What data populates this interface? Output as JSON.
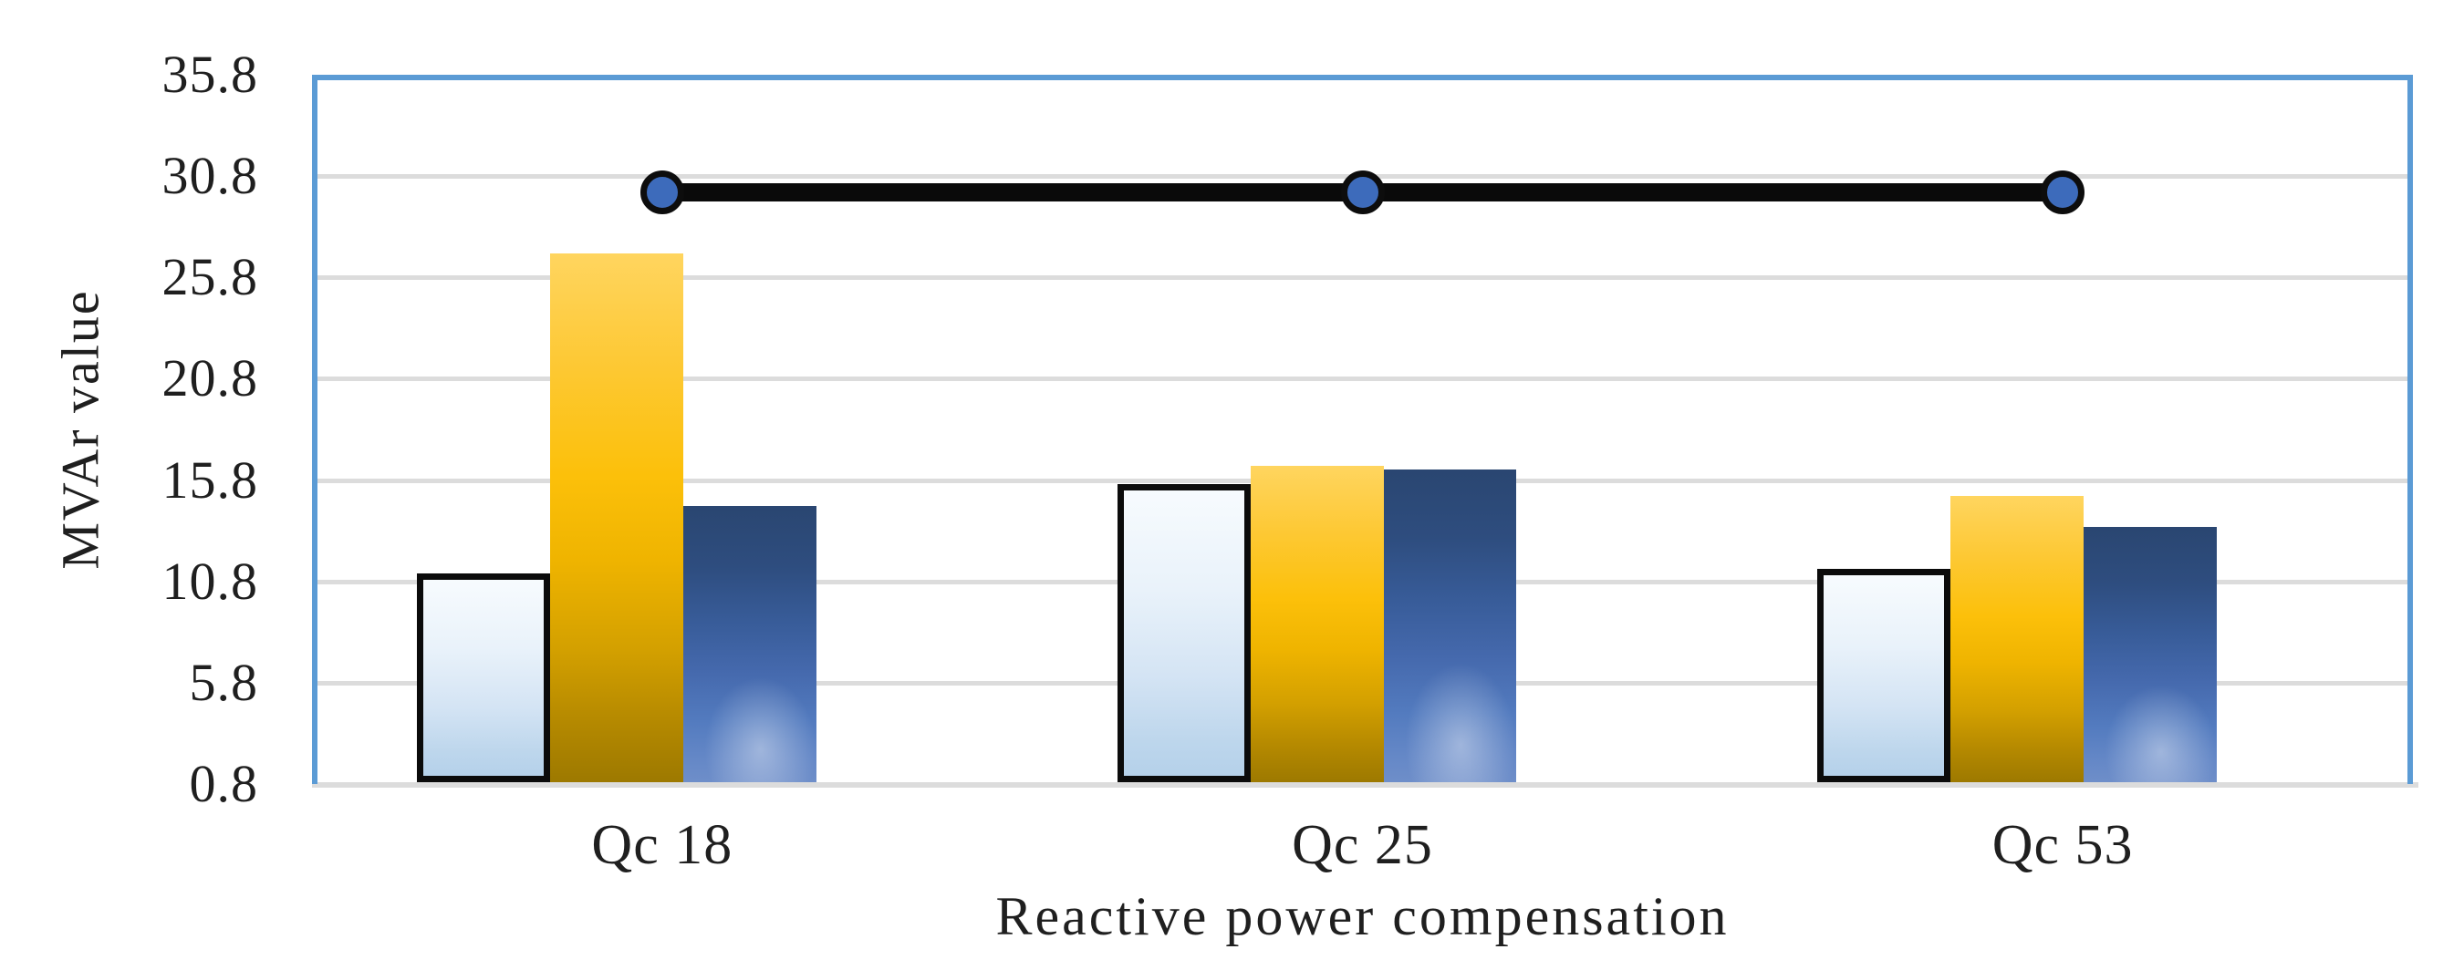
{
  "chart_data": {
    "type": "bar",
    "subtype": "clustered-columns-with-line-overlay",
    "title": "",
    "categories": [
      "Qc 18",
      "Qc 25",
      "Qc 53"
    ],
    "series": [
      {
        "name": "light-blue-bars",
        "type": "bar",
        "values": [
          11.2,
          15.6,
          11.4
        ]
      },
      {
        "name": "gold-bars",
        "type": "bar",
        "values": [
          27.0,
          16.5,
          15.0
        ]
      },
      {
        "name": "dark-blue-bars",
        "type": "bar",
        "values": [
          14.5,
          16.3,
          13.5
        ]
      },
      {
        "name": "black-line",
        "type": "line",
        "values": [
          30.0,
          30.0,
          30.0
        ]
      }
    ],
    "xlabel": "Reactive power compensation",
    "ylabel": "MVAr value",
    "ylim": [
      0.8,
      35.8
    ],
    "yticks": [
      0.8,
      5.8,
      10.8,
      15.8,
      20.8,
      25.8,
      30.8,
      35.8
    ],
    "ytick_labels": [
      "0.8",
      "5.8",
      "10.8",
      "15.8",
      "20.8",
      "25.8",
      "30.8",
      "35.8"
    ],
    "grid": true,
    "legend": false,
    "colors": {
      "plot_border": "#5b9bd5",
      "gridline": "#dcdcdc",
      "x_axis_line": "#dcdcdc",
      "bar_light_top": "#f7fbfe",
      "bar_light_bottom": "#b5d1ea",
      "bar_light_outline": "#0b0b0b",
      "bar_gold_top": "#ffd55f",
      "bar_gold_bottom": "#9d7900",
      "bar_dark_top": "#2a4671",
      "bar_dark_bottom": "#6e8ec9",
      "line": "#0a0a0a",
      "marker_fill": "#3d6bbb",
      "marker_ring": "#0d0d0d",
      "text": "#1f1f1f"
    }
  }
}
